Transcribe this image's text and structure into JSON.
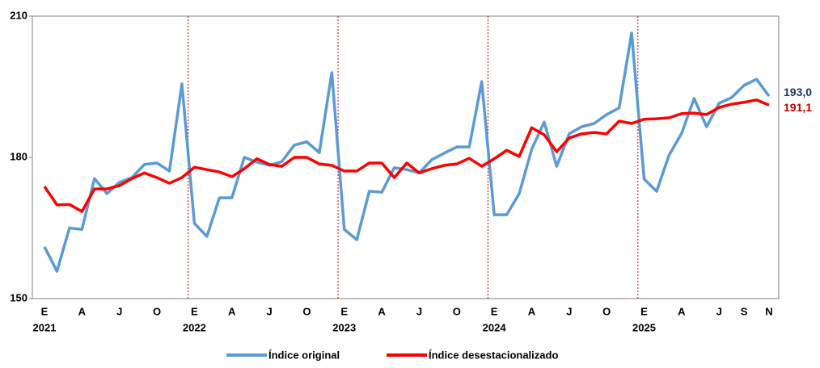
{
  "chart_data": {
    "type": "line",
    "categories": [
      "E",
      null,
      null,
      "A",
      null,
      null,
      "J",
      null,
      null,
      "O",
      null,
      null,
      "E",
      null,
      null,
      "A",
      null,
      null,
      "J",
      null,
      null,
      "O",
      null,
      null,
      "E",
      null,
      null,
      "A",
      null,
      null,
      "J",
      null,
      null,
      "O",
      null,
      null,
      "E",
      null,
      null,
      "A",
      null,
      null,
      "J",
      null,
      null,
      "O",
      null,
      null,
      "E",
      null,
      null,
      "A",
      null,
      null,
      "J",
      null,
      "S",
      null,
      "N"
    ],
    "years": [
      "2021",
      "2022",
      "2023",
      "2024",
      "2025"
    ],
    "ylim": [
      150,
      210
    ],
    "yticks": [
      150,
      180,
      210
    ],
    "series": [
      {
        "name": "Índice original",
        "color": "#5b9bd5",
        "label_color": "#1f3864",
        "values": [
          161,
          155.8,
          165,
          164.7,
          175.5,
          172.3,
          174.7,
          175.7,
          178.5,
          178.8,
          177.1,
          195.6,
          166,
          163.2,
          171.4,
          171.4,
          180,
          179,
          178.3,
          179.1,
          182.6,
          183.3,
          181,
          198,
          164.7,
          162.5,
          172.8,
          172.6,
          177.8,
          177.4,
          176.7,
          179.5,
          180.9,
          182.2,
          182.2,
          196.1,
          167.8,
          167.8,
          172.3,
          181.7,
          187.5,
          178.1,
          185,
          186.5,
          187.2,
          189.1,
          190.5,
          206.4,
          175.4,
          172.8,
          180.5,
          185.1,
          192.5,
          186.5,
          191.5,
          192.7,
          195.3,
          196.6,
          193.0
        ],
        "value_labels": [
          null,
          null,
          null,
          null,
          null,
          null,
          null,
          null,
          null,
          null,
          null,
          null,
          null,
          null,
          null,
          null,
          null,
          null,
          null,
          null,
          null,
          null,
          null,
          null,
          null,
          null,
          null,
          null,
          null,
          null,
          null,
          null,
          null,
          null,
          null,
          null,
          null,
          null,
          null,
          null,
          null,
          null,
          null,
          null,
          null,
          null,
          null,
          null,
          null,
          null,
          null,
          null,
          null,
          null,
          null,
          null,
          null,
          null,
          "193,0"
        ]
      },
      {
        "name": "Índice desestacionalizado",
        "color": "#ff0000",
        "label_color": "#c00000",
        "values": [
          173.8,
          169.9,
          170,
          168.5,
          173.3,
          173.3,
          174,
          175.5,
          176.7,
          175.7,
          174.5,
          175.7,
          177.9,
          177.4,
          176.9,
          175.9,
          177.6,
          179.7,
          178.5,
          178.1,
          180,
          180,
          178.6,
          178.3,
          177.1,
          177.1,
          178.8,
          178.8,
          175.7,
          178.8,
          176.7,
          177.6,
          178.3,
          178.6,
          179.8,
          178.1,
          179.7,
          181.5,
          180.2,
          186.3,
          184.8,
          181.2,
          184.1,
          185,
          185.3,
          185,
          187.7,
          187.2,
          188.1,
          188.2,
          188.4,
          189.3,
          189.4,
          189.1,
          190.6,
          191.3,
          191.7,
          192.2,
          191.1
        ],
        "value_labels": [
          null,
          null,
          null,
          null,
          null,
          null,
          null,
          null,
          null,
          null,
          null,
          null,
          null,
          null,
          null,
          null,
          null,
          null,
          null,
          null,
          null,
          null,
          null,
          null,
          null,
          null,
          null,
          null,
          null,
          null,
          null,
          null,
          null,
          null,
          null,
          null,
          null,
          null,
          null,
          null,
          null,
          null,
          null,
          null,
          null,
          null,
          null,
          null,
          null,
          null,
          null,
          null,
          null,
          null,
          null,
          null,
          null,
          null,
          "191,1"
        ]
      }
    ]
  }
}
